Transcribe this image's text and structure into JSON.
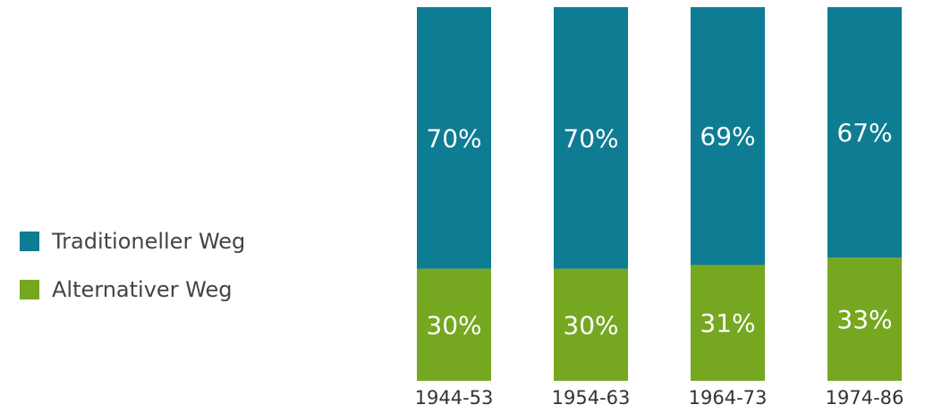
{
  "chart_data": {
    "type": "stacked_bar",
    "categories": [
      "1944-53",
      "1954-63",
      "1964-73",
      "1974-86"
    ],
    "series": [
      {
        "name": "Alternativer Weg",
        "color": "#76a721",
        "values": [
          30,
          30,
          31,
          33
        ],
        "value_labels": [
          "30%",
          "30%",
          "31%",
          "33%"
        ]
      },
      {
        "name": "Traditioneller Weg",
        "color": "#0e7c93",
        "values": [
          70,
          70,
          69,
          67
        ],
        "value_labels": [
          "70%",
          "70%",
          "69%",
          "67%"
        ]
      }
    ],
    "ylim": [
      0,
      100
    ],
    "legend": "left"
  }
}
